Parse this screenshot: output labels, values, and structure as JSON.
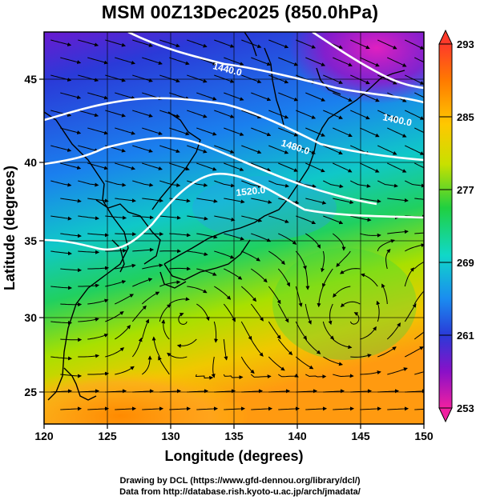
{
  "title": "MSM 00Z13Dec2025 (850.0hPa)",
  "axes": {
    "xlabel": "Longitude (degrees)",
    "ylabel": "Latitude  (degrees)",
    "xticks": [
      "120",
      "125",
      "130",
      "135",
      "140",
      "145",
      "150"
    ],
    "yticks": [
      "25",
      "30",
      "35",
      "40",
      "45"
    ]
  },
  "colorbar": {
    "ticks": [
      "293",
      "285",
      "277",
      "269",
      "261",
      "253"
    ],
    "colors": [
      "#ff3a2a",
      "#ff9a00",
      "#ffe000",
      "#8ee000",
      "#16d040",
      "#10d8c8",
      "#1a8cf0",
      "#2a3ad8",
      "#8a10c8",
      "#f020a0"
    ]
  },
  "contours": [
    "1440.0",
    "1480.0",
    "1400.0",
    "1520.0"
  ],
  "credits": {
    "line1": "Drawing by DCL (https://www.gfd-dennou.org/library/dcl/)",
    "line2": "Data from http://database.rish.kyoto-u.ac.jp/arch/jmadata/"
  },
  "chart_data": {
    "type": "heatmap",
    "title": "MSM 00Z13Dec2025 (850.0hPa)",
    "xlabel": "Longitude (degrees)",
    "ylabel": "Latitude  (degrees)",
    "xlim": [
      120,
      150
    ],
    "ylim": [
      22.4,
      47.6
    ],
    "colorbar_range": [
      253,
      293
    ],
    "colorbar_ticks": [
      293,
      285,
      277,
      269,
      261,
      253
    ],
    "contour_levels": [
      1400,
      1440,
      1480,
      1520
    ],
    "grid": true
  }
}
